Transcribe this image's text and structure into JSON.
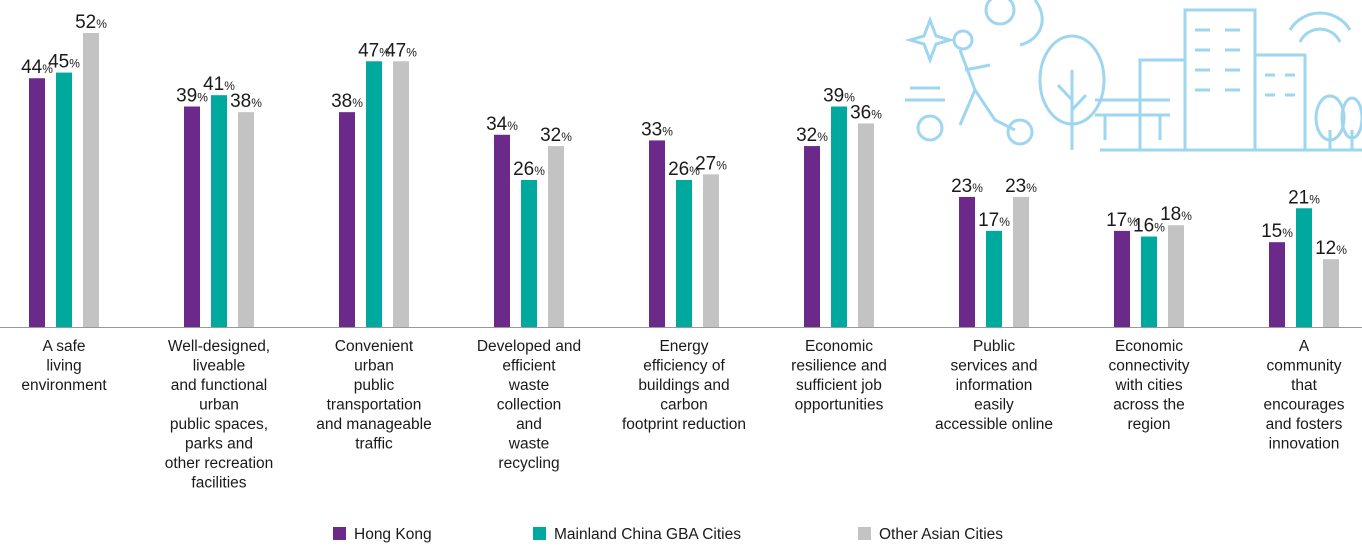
{
  "chart_data": {
    "type": "bar",
    "categories": [
      "A safe\nliving\nenvironment",
      "Well-designed,\nliveable\nand functional\nurban\npublic spaces,\nparks and\nother recreation\nfacilities",
      "Convenient\nurban\npublic\ntransportation\nand manageable\ntraffic",
      "Developed and\nefficient\nwaste\ncollection\nand\nwaste\nrecycling",
      "Energy\nefficiency of\nbuildings and\ncarbon\nfootprint reduction",
      "Economic\nresilience and\nsufficient job\nopportunities",
      "Public\nservices and\ninformation\neasily\naccessible online",
      "Economic\nconnectivity\nwith cities\nacross the\nregion",
      "A\ncommunity\nthat\nencourages\nand fosters\ninnovation"
    ],
    "series": [
      {
        "name": "Hong Kong",
        "color": "#6b2a8a",
        "values": [
          44,
          39,
          38,
          34,
          33,
          32,
          23,
          17,
          15
        ],
        "value_labels": [
          "44%",
          "39%",
          "38%",
          "34%",
          "33%",
          "32%",
          "23%",
          "17%",
          "15%"
        ]
      },
      {
        "name": "Mainland China GBA Cities",
        "color": "#00a99d",
        "values": [
          45,
          41,
          47,
          26,
          26,
          39,
          17,
          16,
          21
        ],
        "value_labels": [
          "45%",
          "41%",
          "47%",
          "26%",
          "26%",
          "39%",
          "17%",
          "16%",
          "21%"
        ]
      },
      {
        "name": "Other Asian Cities",
        "color": "#c3c3c3",
        "values": [
          52,
          38,
          47,
          32,
          27,
          36,
          23,
          18,
          12
        ],
        "value_labels": [
          "52%",
          "38%",
          "47%",
          "32%",
          "27%",
          "36%",
          "23%",
          "18%",
          "12%"
        ]
      }
    ]
  }
}
